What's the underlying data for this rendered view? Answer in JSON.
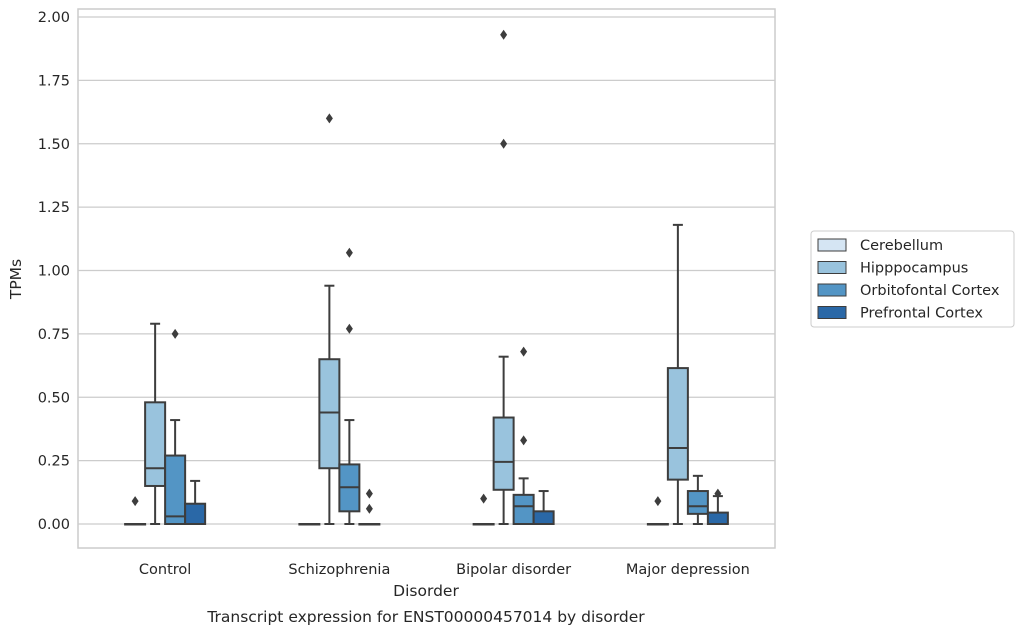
{
  "chart_data": {
    "type": "boxplot",
    "xlabel": "Disorder",
    "ylabel": "TPMs",
    "caption": "Transcript expression for ENST00000457014 by disorder",
    "ylim": [
      -0.09,
      2.03
    ],
    "yticks": [
      0.0,
      0.25,
      0.5,
      0.75,
      1.0,
      1.25,
      1.5,
      1.75,
      2.0
    ],
    "ytick_labels": [
      "0.00",
      "0.25",
      "0.50",
      "0.75",
      "1.00",
      "1.25",
      "1.50",
      "1.75",
      "2.00"
    ],
    "grid": "horizontal",
    "legend_position": "right",
    "categories": [
      "Control",
      "Schizophrenia",
      "Bipolar disorder",
      "Major depression"
    ],
    "series": [
      {
        "name": "Cerebellum",
        "color": "#d5e5f3",
        "boxes": [
          {
            "whislo": 0,
            "q1": 0,
            "med": 0,
            "q3": 0,
            "whishi": 0,
            "fliers": [
              0.09
            ]
          },
          {
            "whislo": 0,
            "q1": 0,
            "med": 0,
            "q3": 0,
            "whishi": 0,
            "fliers": []
          },
          {
            "whislo": 0,
            "q1": 0,
            "med": 0,
            "q3": 0,
            "whishi": 0,
            "fliers": [
              0.1
            ]
          },
          {
            "whislo": 0,
            "q1": 0,
            "med": 0,
            "q3": 0,
            "whishi": 0,
            "fliers": [
              0.09
            ]
          }
        ]
      },
      {
        "name": "Hipppocampus",
        "color": "#99c3dd",
        "boxes": [
          {
            "whislo": 0,
            "q1": 0.15,
            "med": 0.22,
            "q3": 0.48,
            "whishi": 0.79,
            "fliers": []
          },
          {
            "whislo": 0,
            "q1": 0.22,
            "med": 0.44,
            "q3": 0.65,
            "whishi": 0.94,
            "fliers": [
              1.6
            ]
          },
          {
            "whislo": 0,
            "q1": 0.135,
            "med": 0.245,
            "q3": 0.42,
            "whishi": 0.66,
            "fliers": [
              1.5,
              1.93
            ]
          },
          {
            "whislo": 0,
            "q1": 0.175,
            "med": 0.3,
            "q3": 0.615,
            "whishi": 1.18,
            "fliers": []
          }
        ]
      },
      {
        "name": "Orbitofontal Cortex",
        "color": "#5395c5",
        "boxes": [
          {
            "whislo": 0,
            "q1": 0,
            "med": 0.03,
            "q3": 0.27,
            "whishi": 0.41,
            "fliers": [
              0.75
            ]
          },
          {
            "whislo": 0,
            "q1": 0.05,
            "med": 0.145,
            "q3": 0.235,
            "whishi": 0.41,
            "fliers": [
              0.77,
              1.07
            ]
          },
          {
            "whislo": 0,
            "q1": 0,
            "med": 0.07,
            "q3": 0.115,
            "whishi": 0.18,
            "fliers": [
              0.33,
              0.68
            ]
          },
          {
            "whislo": 0,
            "q1": 0.04,
            "med": 0.07,
            "q3": 0.13,
            "whishi": 0.19,
            "fliers": []
          }
        ]
      },
      {
        "name": "Prefrontal Cortex",
        "color": "#2a68a7",
        "boxes": [
          {
            "whislo": 0,
            "q1": 0,
            "med": 0,
            "q3": 0.08,
            "whishi": 0.17,
            "fliers": []
          },
          {
            "whislo": 0,
            "q1": 0,
            "med": 0,
            "q3": 0,
            "whishi": 0,
            "fliers": [
              0.06,
              0.12
            ]
          },
          {
            "whislo": 0,
            "q1": 0,
            "med": 0,
            "q3": 0.05,
            "whishi": 0.13,
            "fliers": []
          },
          {
            "whislo": 0,
            "q1": 0,
            "med": 0,
            "q3": 0.045,
            "whishi": 0.11,
            "fliers": [
              0.12
            ]
          }
        ]
      }
    ]
  }
}
